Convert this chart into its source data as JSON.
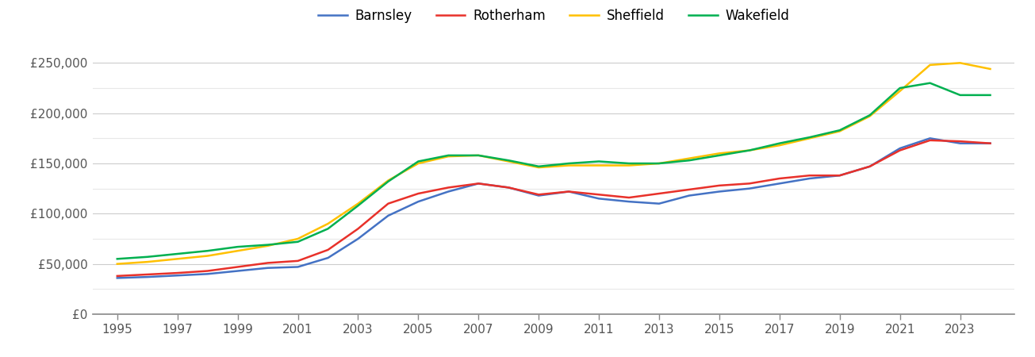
{
  "years": [
    1995,
    1996,
    1997,
    1998,
    1999,
    2000,
    2001,
    2002,
    2003,
    2004,
    2005,
    2006,
    2007,
    2008,
    2009,
    2010,
    2011,
    2012,
    2013,
    2014,
    2015,
    2016,
    2017,
    2018,
    2019,
    2020,
    2021,
    2022,
    2023,
    2024
  ],
  "barnsley": [
    36000,
    37000,
    38500,
    40000,
    43000,
    46000,
    47000,
    56000,
    75000,
    98000,
    112000,
    122000,
    130000,
    126000,
    118000,
    122000,
    115000,
    112000,
    110000,
    118000,
    122000,
    125000,
    130000,
    135000,
    138000,
    147000,
    165000,
    175000,
    170000,
    170000
  ],
  "rotherham": [
    38000,
    39500,
    41000,
    43000,
    47000,
    51000,
    53000,
    64000,
    85000,
    110000,
    120000,
    126000,
    130000,
    126000,
    119000,
    122000,
    119000,
    116000,
    120000,
    124000,
    128000,
    130000,
    135000,
    138000,
    138000,
    147000,
    163000,
    173000,
    172000,
    170000
  ],
  "sheffield": [
    50000,
    52000,
    55000,
    58000,
    63000,
    68000,
    75000,
    90000,
    110000,
    133000,
    150000,
    157000,
    158000,
    152000,
    146000,
    148000,
    148000,
    148000,
    150000,
    155000,
    160000,
    163000,
    168000,
    175000,
    182000,
    197000,
    222000,
    248000,
    250000,
    244000
  ],
  "wakefield": [
    55000,
    57000,
    60000,
    63000,
    67000,
    69000,
    72000,
    85000,
    108000,
    132000,
    152000,
    158000,
    158000,
    153000,
    147000,
    150000,
    152000,
    150000,
    150000,
    153000,
    158000,
    163000,
    170000,
    176000,
    183000,
    198000,
    225000,
    230000,
    218000,
    218000
  ],
  "colors": {
    "barnsley": "#4472c4",
    "rotherham": "#e8312a",
    "sheffield": "#ffc000",
    "wakefield": "#00b050"
  },
  "ylim": [
    0,
    270000
  ],
  "major_yticks": [
    0,
    50000,
    100000,
    150000,
    200000,
    250000
  ],
  "minor_yticks": [
    25000,
    75000,
    125000,
    175000,
    225000
  ],
  "ytick_labels": [
    "£0",
    "£50,000",
    "£100,000",
    "£150,000",
    "£200,000",
    "£250,000"
  ],
  "xtick_years": [
    1995,
    1997,
    1999,
    2001,
    2003,
    2005,
    2007,
    2009,
    2011,
    2013,
    2015,
    2017,
    2019,
    2021,
    2023
  ],
  "legend_labels": [
    "Barnsley",
    "Rotherham",
    "Sheffield",
    "Wakefield"
  ],
  "background_color": "#ffffff",
  "major_grid_color": "#cccccc",
  "minor_grid_color": "#e8e8e8",
  "line_width": 1.8,
  "text_color": "#555555"
}
